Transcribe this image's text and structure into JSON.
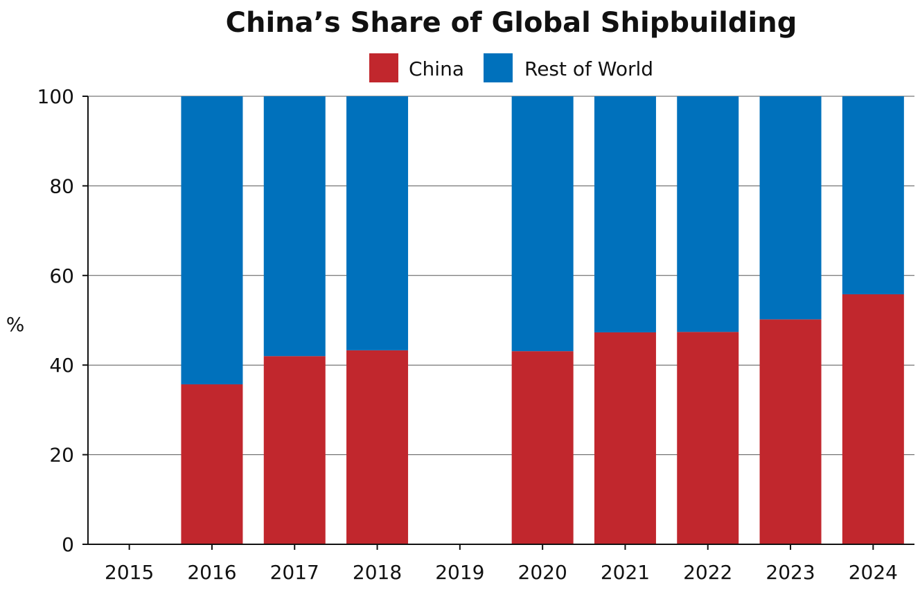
{
  "chart_data": {
    "type": "bar",
    "stacked": true,
    "title": "China’s Share of Global Shipbuilding",
    "xlabel": "",
    "ylabel": "%",
    "ylim": [
      0,
      100
    ],
    "yticks": [
      0,
      20,
      40,
      60,
      80,
      100
    ],
    "grid": true,
    "legend_placement": "top",
    "categories": [
      "2015",
      "2016",
      "2017",
      "2018",
      "2019",
      "2020",
      "2021",
      "2022",
      "2023",
      "2024"
    ],
    "series": [
      {
        "name": "China",
        "color": "#c1272d",
        "values": [
          null,
          35.7,
          42.0,
          43.3,
          null,
          43.1,
          47.3,
          47.4,
          50.2,
          55.8
        ]
      },
      {
        "name": "Rest of World",
        "color": "#0071bc",
        "values": [
          null,
          64.3,
          58.0,
          56.7,
          null,
          56.9,
          52.7,
          52.6,
          49.8,
          44.2
        ]
      }
    ]
  }
}
